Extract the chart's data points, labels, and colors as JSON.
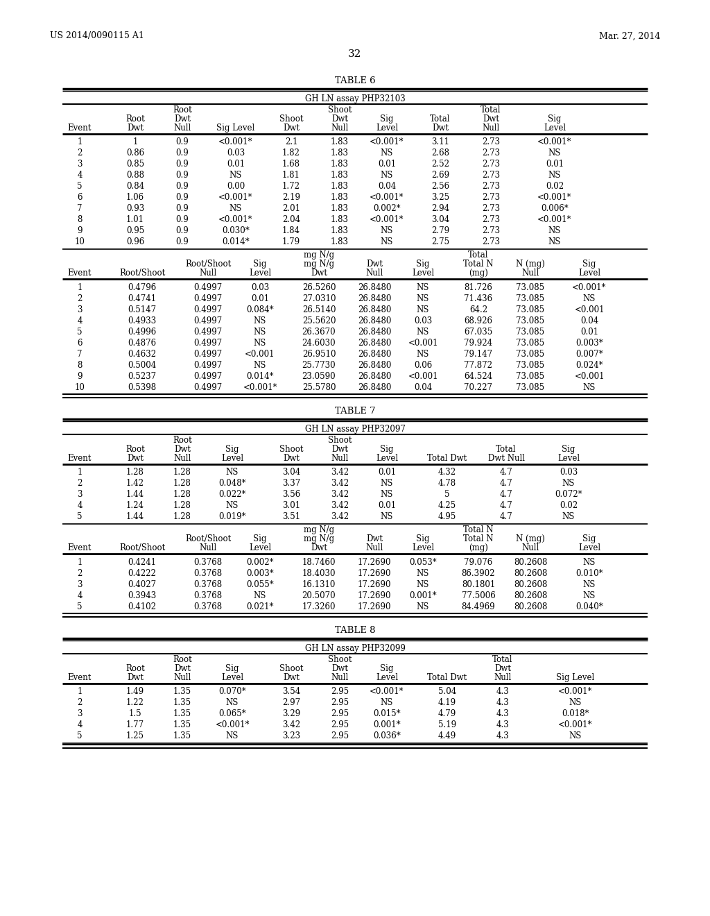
{
  "header_left": "US 2014/0090115 A1",
  "header_right": "Mar. 27, 2014",
  "page_number": "32",
  "background_color": "#ffffff",
  "table6_title": "TABLE 6",
  "table6_subtitle": "GH LN assay PHP32103",
  "table6_part1_data": [
    [
      "1",
      "1",
      "0.9",
      "<0.001*",
      "2.1",
      "1.83",
      "<0.001*",
      "3.11",
      "2.73",
      "<0.001*"
    ],
    [
      "2",
      "0.86",
      "0.9",
      "0.03",
      "1.82",
      "1.83",
      "NS",
      "2.68",
      "2.73",
      "NS"
    ],
    [
      "3",
      "0.85",
      "0.9",
      "0.01",
      "1.68",
      "1.83",
      "0.01",
      "2.52",
      "2.73",
      "0.01"
    ],
    [
      "4",
      "0.88",
      "0.9",
      "NS",
      "1.81",
      "1.83",
      "NS",
      "2.69",
      "2.73",
      "NS"
    ],
    [
      "5",
      "0.84",
      "0.9",
      "0.00",
      "1.72",
      "1.83",
      "0.04",
      "2.56",
      "2.73",
      "0.02"
    ],
    [
      "6",
      "1.06",
      "0.9",
      "<0.001*",
      "2.19",
      "1.83",
      "<0.001*",
      "3.25",
      "2.73",
      "<0.001*"
    ],
    [
      "7",
      "0.93",
      "0.9",
      "NS",
      "2.01",
      "1.83",
      "0.002*",
      "2.94",
      "2.73",
      "0.006*"
    ],
    [
      "8",
      "1.01",
      "0.9",
      "<0.001*",
      "2.04",
      "1.83",
      "<0.001*",
      "3.04",
      "2.73",
      "<0.001*"
    ],
    [
      "9",
      "0.95",
      "0.9",
      "0.030*",
      "1.84",
      "1.83",
      "NS",
      "2.79",
      "2.73",
      "NS"
    ],
    [
      "10",
      "0.96",
      "0.9",
      "0.014*",
      "1.79",
      "1.83",
      "NS",
      "2.75",
      "2.73",
      "NS"
    ]
  ],
  "table6_part2_data": [
    [
      "1",
      "0.4796",
      "0.4997",
      "0.03",
      "26.5260",
      "26.8480",
      "NS",
      "81.726",
      "73.085",
      "<0.001*"
    ],
    [
      "2",
      "0.4741",
      "0.4997",
      "0.01",
      "27.0310",
      "26.8480",
      "NS",
      "71.436",
      "73.085",
      "NS"
    ],
    [
      "3",
      "0.5147",
      "0.4997",
      "0.084*",
      "26.5140",
      "26.8480",
      "NS",
      "64.2",
      "73.085",
      "<0.001"
    ],
    [
      "4",
      "0.4933",
      "0.4997",
      "NS",
      "25.5620",
      "26.8480",
      "0.03",
      "68.926",
      "73.085",
      "0.04"
    ],
    [
      "5",
      "0.4996",
      "0.4997",
      "NS",
      "26.3670",
      "26.8480",
      "NS",
      "67.035",
      "73.085",
      "0.01"
    ],
    [
      "6",
      "0.4876",
      "0.4997",
      "NS",
      "24.6030",
      "26.8480",
      "<0.001",
      "79.924",
      "73.085",
      "0.003*"
    ],
    [
      "7",
      "0.4632",
      "0.4997",
      "<0.001",
      "26.9510",
      "26.8480",
      "NS",
      "79.147",
      "73.085",
      "0.007*"
    ],
    [
      "8",
      "0.5004",
      "0.4997",
      "NS",
      "25.7730",
      "26.8480",
      "0.06",
      "77.872",
      "73.085",
      "0.024*"
    ],
    [
      "9",
      "0.5237",
      "0.4997",
      "0.014*",
      "23.0590",
      "26.8480",
      "<0.001",
      "64.524",
      "73.085",
      "<0.001"
    ],
    [
      "10",
      "0.5398",
      "0.4997",
      "<0.001*",
      "25.5780",
      "26.8480",
      "0.04",
      "70.227",
      "73.085",
      "NS"
    ]
  ],
  "table7_title": "TABLE 7",
  "table7_subtitle": "GH LN assay PHP32097",
  "table7_part1_data": [
    [
      "1",
      "1.28",
      "1.28",
      "NS",
      "3.04",
      "3.42",
      "0.01",
      "4.32",
      "4.7",
      "0.03"
    ],
    [
      "2",
      "1.42",
      "1.28",
      "0.048*",
      "3.37",
      "3.42",
      "NS",
      "4.78",
      "4.7",
      "NS"
    ],
    [
      "3",
      "1.44",
      "1.28",
      "0.022*",
      "3.56",
      "3.42",
      "NS",
      "5",
      "4.7",
      "0.072*"
    ],
    [
      "4",
      "1.24",
      "1.28",
      "NS",
      "3.01",
      "3.42",
      "0.01",
      "4.25",
      "4.7",
      "0.02"
    ],
    [
      "5",
      "1.44",
      "1.28",
      "0.019*",
      "3.51",
      "3.42",
      "NS",
      "4.95",
      "4.7",
      "NS"
    ]
  ],
  "table7_part2_data": [
    [
      "1",
      "0.4241",
      "0.3768",
      "0.002*",
      "18.7460",
      "17.2690",
      "0.053*",
      "79.076",
      "80.2608",
      "NS"
    ],
    [
      "2",
      "0.4222",
      "0.3768",
      "0.003*",
      "18.4030",
      "17.2690",
      "NS",
      "86.3902",
      "80.2608",
      "0.010*"
    ],
    [
      "3",
      "0.4027",
      "0.3768",
      "0.055*",
      "16.1310",
      "17.2690",
      "NS",
      "80.1801",
      "80.2608",
      "NS"
    ],
    [
      "4",
      "0.3943",
      "0.3768",
      "NS",
      "20.5070",
      "17.2690",
      "0.001*",
      "77.5006",
      "80.2608",
      "NS"
    ],
    [
      "5",
      "0.4102",
      "0.3768",
      "0.021*",
      "17.3260",
      "17.2690",
      "NS",
      "84.4969",
      "80.2608",
      "0.040*"
    ]
  ],
  "table8_title": "TABLE 8",
  "table8_subtitle": "GH LN assay PHP32099",
  "table8_part1_data": [
    [
      "1",
      "1.49",
      "1.35",
      "0.070*",
      "3.54",
      "2.95",
      "<0.001*",
      "5.04",
      "4.3",
      "<0.001*"
    ],
    [
      "2",
      "1.22",
      "1.35",
      "NS",
      "2.97",
      "2.95",
      "NS",
      "4.19",
      "4.3",
      "NS"
    ],
    [
      "3",
      "1.5",
      "1.35",
      "0.065*",
      "3.29",
      "2.95",
      "0.015*",
      "4.79",
      "4.3",
      "0.018*"
    ],
    [
      "4",
      "1.77",
      "1.35",
      "<0.001*",
      "3.42",
      "2.95",
      "0.001*",
      "5.19",
      "4.3",
      "<0.001*"
    ],
    [
      "5",
      "1.25",
      "1.35",
      "NS",
      "3.23",
      "2.95",
      "0.036*",
      "4.49",
      "4.3",
      "NS"
    ]
  ]
}
